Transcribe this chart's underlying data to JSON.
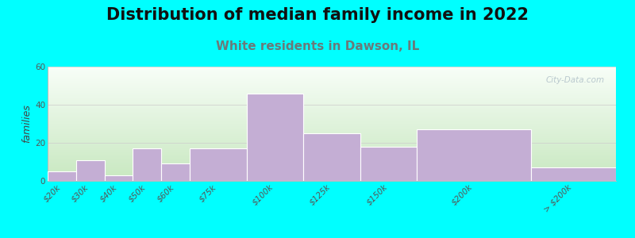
{
  "title": "Distribution of median family income in 2022",
  "subtitle": "White residents in Dawson, IL",
  "ylabel": "families",
  "background_color": "#00FFFF",
  "plot_bg_top": "#f0faf0",
  "plot_bg_bottom": "#e8f5e8",
  "bar_color": "#c4aed4",
  "bar_edge_color": "#ffffff",
  "categories": [
    "$20k",
    "$30k",
    "$40k",
    "$50k",
    "$60k",
    "$75k",
    "$100k",
    "$125k",
    "$150k",
    "$200k",
    "> $200k"
  ],
  "values": [
    5,
    11,
    3,
    17,
    9,
    17,
    46,
    25,
    18,
    27,
    7
  ],
  "ylim": [
    0,
    60
  ],
  "yticks": [
    0,
    20,
    40,
    60
  ],
  "title_fontsize": 15,
  "subtitle_fontsize": 11,
  "subtitle_color": "#6a7a7a",
  "ylabel_fontsize": 9,
  "tick_fontsize": 7.5,
  "watermark": "City-Data.com",
  "bar_lefts": [
    0,
    1,
    2,
    3,
    4,
    5,
    7,
    9,
    11,
    13,
    17
  ],
  "bar_widths": [
    1,
    1,
    1,
    1,
    1,
    2,
    2,
    2,
    2,
    4,
    3
  ],
  "xlim": [
    0,
    20
  ]
}
